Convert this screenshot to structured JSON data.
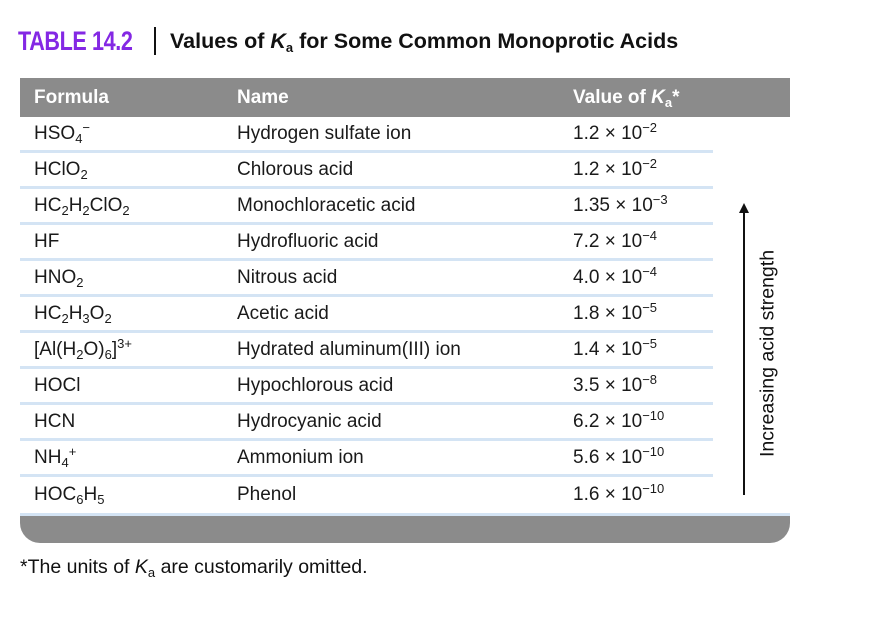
{
  "title": {
    "label": "TABLE 14.2",
    "rich": [
      {
        "t": "Values of "
      },
      {
        "t": "K",
        "s": "i"
      },
      {
        "t": "a",
        "s": "sub"
      },
      {
        "t": " for Some Common Monoprotic Acids"
      }
    ]
  },
  "table": {
    "columns": {
      "formula": "Formula",
      "name": "Name"
    },
    "value_header_rich": [
      {
        "t": "Value of "
      },
      {
        "t": "K",
        "s": "i"
      },
      {
        "t": "a",
        "s": "sub"
      },
      {
        "t": "*"
      }
    ],
    "rows": [
      {
        "formula": [
          {
            "t": "HSO"
          },
          {
            "t": "4",
            "s": "sub"
          },
          {
            "t": "−",
            "s": "sup"
          }
        ],
        "name": "Hydrogen sulfate ion",
        "value": [
          {
            "t": "1.2 × 10"
          },
          {
            "t": "−2",
            "s": "sup"
          }
        ]
      },
      {
        "formula": [
          {
            "t": "HClO"
          },
          {
            "t": "2",
            "s": "sub"
          }
        ],
        "name": "Chlorous acid",
        "value": [
          {
            "t": "1.2 × 10"
          },
          {
            "t": "−2",
            "s": "sup"
          }
        ]
      },
      {
        "formula": [
          {
            "t": "HC"
          },
          {
            "t": "2",
            "s": "sub"
          },
          {
            "t": "H"
          },
          {
            "t": "2",
            "s": "sub"
          },
          {
            "t": "ClO"
          },
          {
            "t": "2",
            "s": "sub"
          }
        ],
        "name": "Monochloracetic acid",
        "value": [
          {
            "t": "1.35 × 10"
          },
          {
            "t": "−3",
            "s": "sup"
          }
        ]
      },
      {
        "formula": [
          {
            "t": "HF"
          }
        ],
        "name": "Hydrofluoric acid",
        "value": [
          {
            "t": "7.2 × 10"
          },
          {
            "t": "−4",
            "s": "sup"
          }
        ]
      },
      {
        "formula": [
          {
            "t": "HNO"
          },
          {
            "t": "2",
            "s": "sub"
          }
        ],
        "name": "Nitrous acid",
        "value": [
          {
            "t": "4.0 × 10"
          },
          {
            "t": "−4",
            "s": "sup"
          }
        ]
      },
      {
        "formula": [
          {
            "t": "HC"
          },
          {
            "t": "2",
            "s": "sub"
          },
          {
            "t": "H"
          },
          {
            "t": "3",
            "s": "sub"
          },
          {
            "t": "O"
          },
          {
            "t": "2",
            "s": "sub"
          }
        ],
        "name": "Acetic acid",
        "value": [
          {
            "t": "1.8 × 10"
          },
          {
            "t": "−5",
            "s": "sup"
          }
        ]
      },
      {
        "formula": [
          {
            "t": "[Al(H"
          },
          {
            "t": "2",
            "s": "sub"
          },
          {
            "t": "O)"
          },
          {
            "t": "6",
            "s": "sub"
          },
          {
            "t": "]"
          },
          {
            "t": "3+",
            "s": "sup"
          }
        ],
        "name": "Hydrated aluminum(III) ion",
        "value": [
          {
            "t": "1.4 × 10"
          },
          {
            "t": "−5",
            "s": "sup"
          }
        ]
      },
      {
        "formula": [
          {
            "t": "HOCl"
          }
        ],
        "name": "Hypochlorous acid",
        "value": [
          {
            "t": "3.5 × 10"
          },
          {
            "t": "−8",
            "s": "sup"
          }
        ]
      },
      {
        "formula": [
          {
            "t": "HCN"
          }
        ],
        "name": "Hydrocyanic acid",
        "value": [
          {
            "t": "6.2 × 10"
          },
          {
            "t": "−10",
            "s": "sup"
          }
        ]
      },
      {
        "formula": [
          {
            "t": "NH"
          },
          {
            "t": "4",
            "s": "sub"
          },
          {
            "t": "+",
            "s": "sup"
          }
        ],
        "name": "Ammonium ion",
        "value": [
          {
            "t": "5.6 × 10"
          },
          {
            "t": "−10",
            "s": "sup"
          }
        ]
      },
      {
        "formula": [
          {
            "t": "HOC"
          },
          {
            "t": "6",
            "s": "sub"
          },
          {
            "t": "H"
          },
          {
            "t": "5",
            "s": "sub"
          }
        ],
        "name": "Phenol",
        "value": [
          {
            "t": "1.6 × 10"
          },
          {
            "t": "−10",
            "s": "sup"
          }
        ]
      }
    ]
  },
  "arrow_label": "Increasing acid strength",
  "footnote_rich": [
    {
      "t": "*The units of "
    },
    {
      "t": "K",
      "s": "i"
    },
    {
      "t": "a",
      "s": "sub"
    },
    {
      "t": " are customarily omitted."
    }
  ],
  "colors": {
    "accent_purple": "#8428E4",
    "header_gray": "#8B8B8B",
    "row_divider_blue": "#D4E4F4",
    "text": "#1A1A1A"
  }
}
